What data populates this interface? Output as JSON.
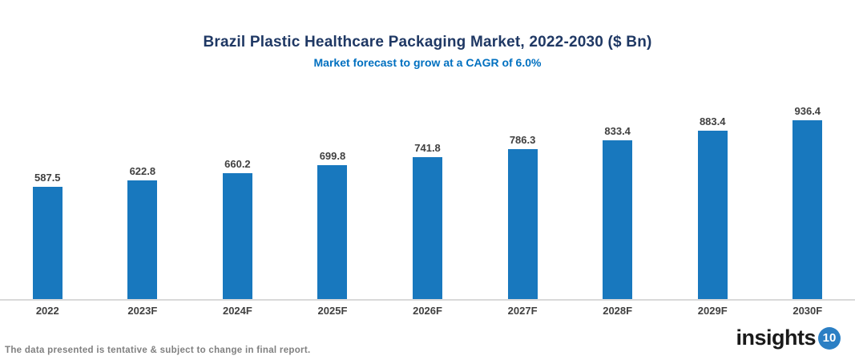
{
  "title": "Brazil Plastic Healthcare Packaging Market, 2022-2030 ($ Bn)",
  "subtitle": "Market forecast to grow at a CAGR of 6.0%",
  "footer": {
    "disclaimer": "The data presented is tentative & subject to change in final report."
  },
  "logo": {
    "text": "insights",
    "badge": "10",
    "badge_color": "#2B7FC4"
  },
  "chart_data": {
    "type": "bar",
    "title": "Brazil Plastic Healthcare Packaging Market, 2022-2030 ($ Bn)",
    "subtitle": "Market forecast to grow at a CAGR of 6.0%",
    "categories": [
      "2022",
      "2023F",
      "2024F",
      "2025F",
      "2026F",
      "2027F",
      "2028F",
      "2029F",
      "2030F"
    ],
    "values": [
      587.5,
      622.8,
      660.2,
      699.8,
      741.8,
      786.3,
      833.4,
      883.4,
      936.4
    ],
    "xlabel": "",
    "ylabel": "",
    "ylim": [
      0,
      1020
    ],
    "grid": false,
    "legend": false,
    "data_labels": true,
    "bar_color": "#1878BE",
    "title_color": "#1F3864",
    "subtitle_color": "#0070C0",
    "label_color": "#404040",
    "axis_line_color": "#D9D9D9"
  }
}
